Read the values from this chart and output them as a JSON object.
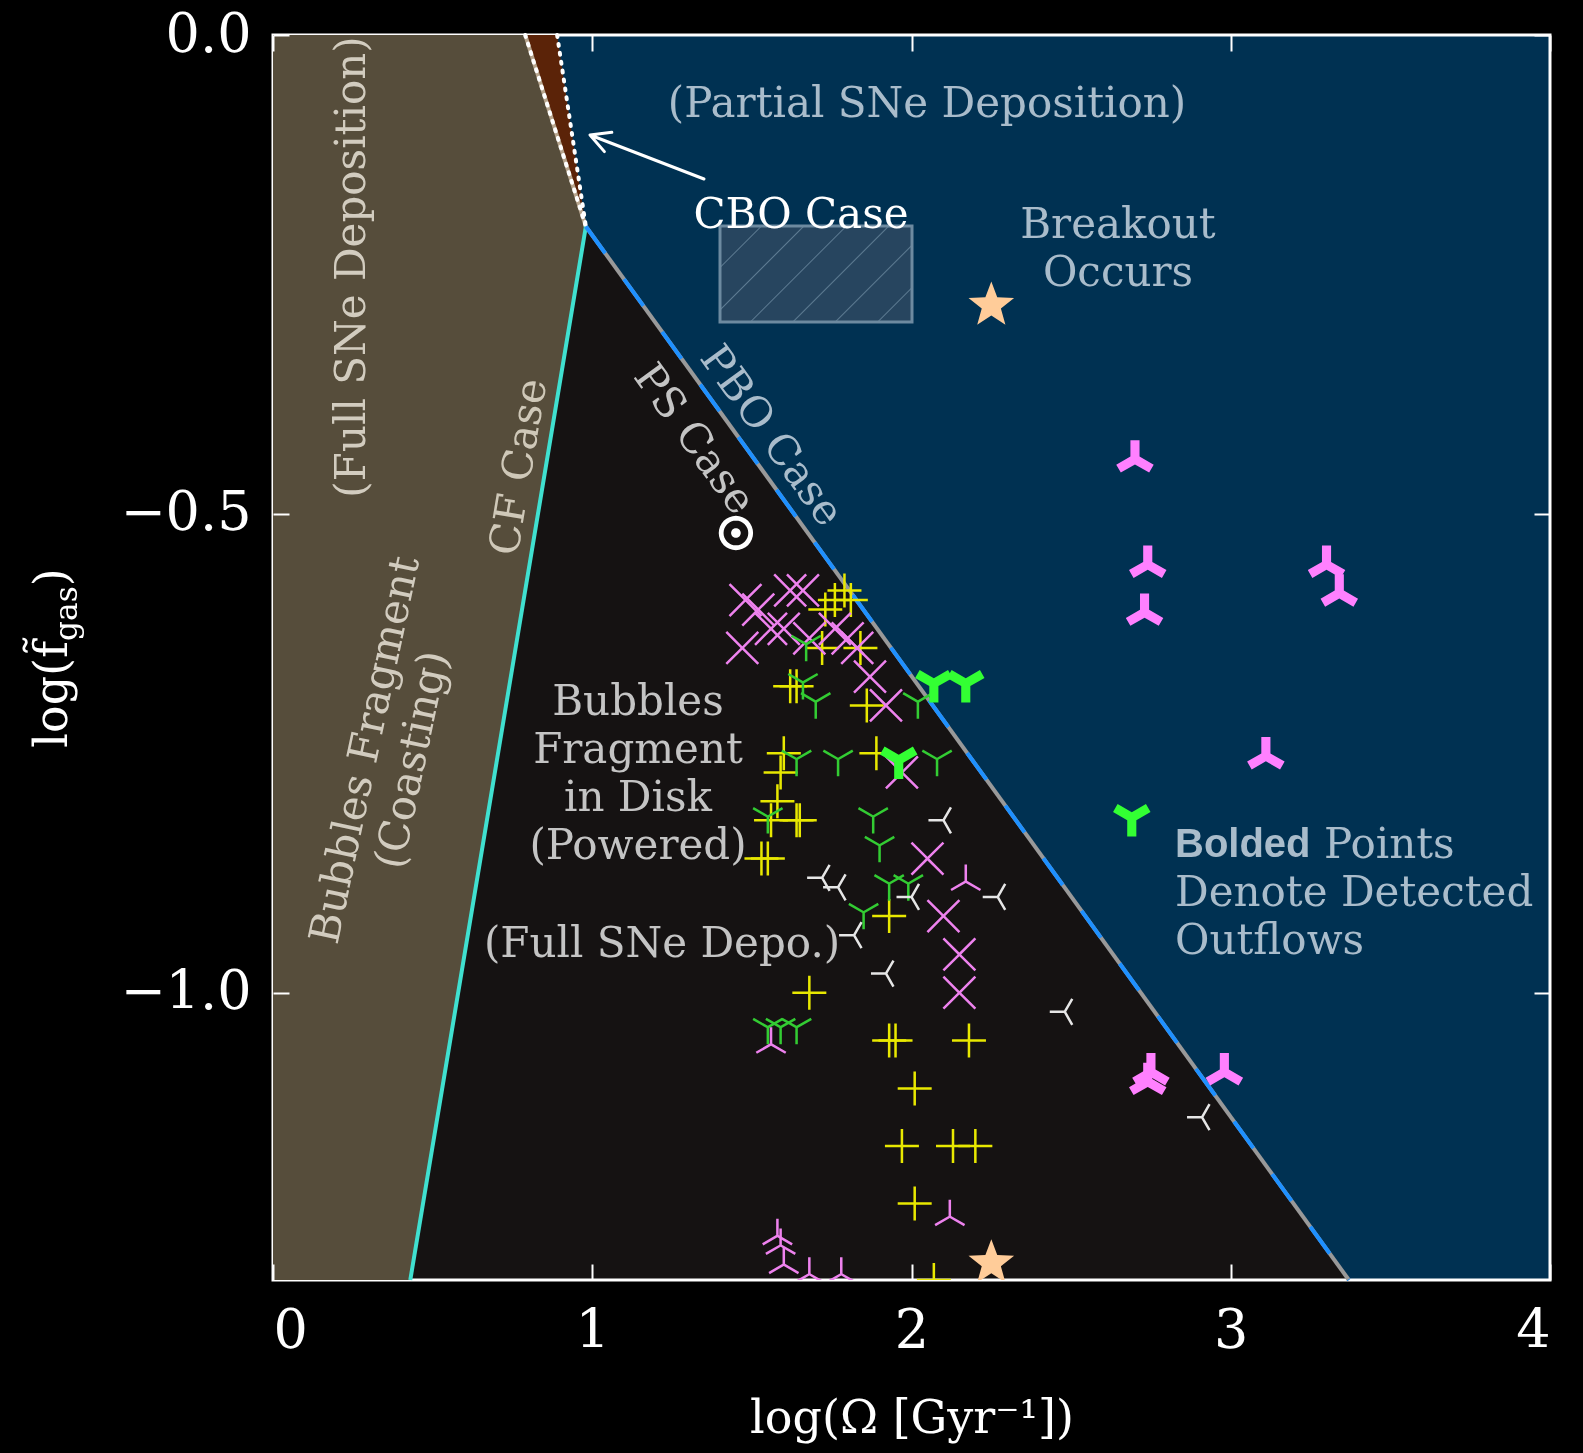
{
  "chart_data": {
    "type": "scatter",
    "xlabel": "log(Ω [Gyr⁻¹])",
    "ylabel": "log(f̃$_{gas}$)",
    "xlim": [
      0,
      4
    ],
    "ylim": [
      -1.3,
      0
    ],
    "xticks": [
      0,
      1,
      2,
      3,
      4
    ],
    "yticks": [
      {
        "value": -1,
        "label": "−1.0"
      },
      {
        "value": -0.5,
        "label": "−0.5"
      },
      {
        "value": 0,
        "label": "0.0"
      }
    ],
    "series": [
      {
        "type": "line",
        "color": "#b8a68f",
        "x": [
          0.79,
          0.98
        ],
        "values": [
          0,
          -0.2
        ]
      },
      {
        "type": "line",
        "color": "#ffffff",
        "line_style": "dotted",
        "x": [
          0.79,
          0.98
        ],
        "values": [
          0,
          -0.2
        ]
      },
      {
        "type": "line",
        "color": "#ffffff",
        "line_style": "dotted",
        "x": [
          0.89,
          0.98
        ],
        "values": [
          0,
          -0.2
        ]
      },
      {
        "type": "line",
        "name": "CF Case",
        "color": "#40e0d0",
        "x": [
          0.43,
          0.98
        ],
        "values": [
          -1.3,
          -0.2
        ]
      },
      {
        "type": "line",
        "name": "PS Case",
        "color": "#999999",
        "x": [
          0.98,
          3.37
        ],
        "values": [
          -0.2,
          -1.3
        ]
      },
      {
        "type": "line",
        "name": "PBO Case",
        "color": "#1e90ff",
        "line_style": "dashed",
        "x": [
          0.98,
          3.37
        ],
        "values": [
          -0.2,
          -1.3
        ]
      },
      {
        "type": "scatter",
        "marker": "cross",
        "color": "#e8e800",
        "x": [
          1.76,
          1.79,
          1.81,
          1.73,
          1.72,
          1.84,
          1.62,
          1.64,
          1.86,
          1.6,
          1.89,
          1.59,
          1.58,
          1.56,
          1.64,
          1.65,
          1.53,
          1.55,
          1.93,
          1.68,
          1.93,
          1.95,
          2.18,
          2.01,
          1.97,
          2.13,
          2.2,
          2.01,
          2.07
        ],
        "values": [
          -0.59,
          -0.58,
          -0.59,
          -0.6,
          -0.64,
          -0.64,
          -0.68,
          -0.68,
          -0.7,
          -0.75,
          -0.75,
          -0.77,
          -0.8,
          -0.82,
          -0.82,
          -0.82,
          -0.86,
          -0.86,
          -0.92,
          -1.0,
          -1.05,
          -1.05,
          -1.05,
          -1.1,
          -1.16,
          -1.16,
          -1.16,
          -1.22,
          -1.3
        ]
      },
      {
        "type": "scatter",
        "color": "#ee82ee",
        "x": [
          1.48,
          1.52,
          1.56,
          1.47,
          1.62,
          1.66,
          1.6,
          1.68,
          1.76,
          1.8,
          1.83,
          1.87,
          1.92,
          1.97,
          2.05,
          2.1,
          2.15,
          2.15
        ],
        "values": [
          -0.59,
          -0.6,
          -0.62,
          -0.64,
          -0.58,
          -0.58,
          -0.62,
          -0.63,
          -0.62,
          -0.63,
          -0.64,
          -0.67,
          -0.7,
          -0.77,
          -0.86,
          -0.92,
          -0.96,
          -1.0
        ]
      },
      {
        "type": "scatter",
        "color": "#33cc33",
        "x": [
          1.67,
          1.66,
          1.7,
          2.02,
          1.64,
          1.77,
          2.08,
          1.55,
          1.88,
          1.9,
          1.93,
          1.99,
          1.85,
          1.55,
          1.59,
          1.64
        ],
        "values": [
          -0.64,
          -0.68,
          -0.7,
          -0.7,
          -0.76,
          -0.76,
          -0.76,
          -0.82,
          -0.82,
          -0.85,
          -0.89,
          -0.89,
          -0.92,
          -1.04,
          -1.04,
          -1.04
        ]
      },
      {
        "type": "scatter",
        "color": "#33ff33",
        "x": [
          2.07,
          2.17,
          1.96,
          2.69
        ],
        "values": [
          -0.68,
          -0.68,
          -0.76,
          -0.82
        ]
      },
      {
        "type": "scatter",
        "color": "#e6e6e6",
        "x": [
          2.09,
          1.71,
          1.76,
          1.99,
          2.26,
          1.81,
          1.91,
          2.47,
          2.9
        ],
        "values": [
          -0.82,
          -0.88,
          -0.89,
          -0.9,
          -0.9,
          -0.94,
          -0.98,
          -1.02,
          -1.13
        ]
      },
      {
        "type": "scatter",
        "color": "#ee82ee",
        "x": [
          2.17,
          1.56,
          2.12,
          1.58,
          1.59,
          1.6,
          1.68,
          1.78
        ],
        "values": [
          -0.88,
          -1.05,
          -1.23,
          -1.25,
          -1.26,
          -1.28,
          -1.29,
          -1.29
        ]
      },
      {
        "type": "scatter",
        "color": "#ff80ff",
        "x": [
          2.7,
          2.74,
          2.73,
          3.3,
          3.34,
          3.11,
          2.75,
          2.74,
          2.98
        ],
        "values": [
          -0.44,
          -0.55,
          -0.6,
          -0.55,
          -0.58,
          -0.75,
          -1.08,
          -1.09,
          -1.08
        ]
      },
      {
        "type": "scatter",
        "marker": "star",
        "color": "#ffcc99",
        "x": [
          2.25,
          2.25
        ],
        "values": [
          -0.28,
          -1.28
        ]
      },
      {
        "type": "scatter",
        "color": "#ffffff",
        "x": [
          1.45
        ],
        "values": [
          -0.52
        ]
      }
    ],
    "annotations": [
      "(Partial SNe Deposition)",
      "CBO Case",
      "Breakout\nOccurs",
      "(Full SNe Deposition)",
      "Bubbles Fragment\n(Coasting)",
      "Bubbles\nFragment\nin Disk\n(Powered)",
      "(Full SNe Depo.)",
      "Bolded Points\nDenote Detected\nOutflows"
    ]
  }
}
